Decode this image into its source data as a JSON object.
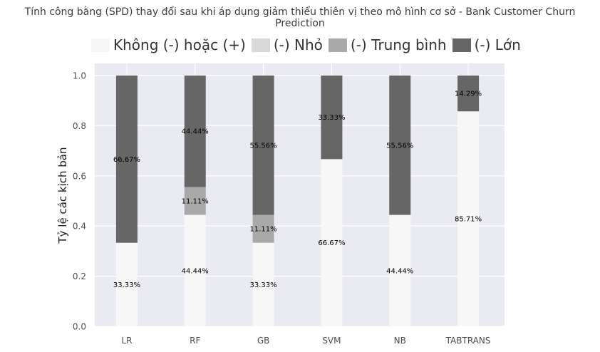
{
  "chart_data": {
    "type": "bar",
    "stacked": true,
    "title": "Tính công bằng (SPD) thay đổi sau khi áp dụng giảm thiểu thiên vị theo mô hình cơ sở - Bank Customer Churn Prediction",
    "ylabel": "Tỷ lệ các kịch bản",
    "xlabel": "",
    "ylim": [
      0,
      1.0
    ],
    "yticks": [
      "0.0",
      "0.2",
      "0.4",
      "0.6",
      "0.8",
      "1.0"
    ],
    "grid": true,
    "legend_position": "top",
    "categories": [
      "LR",
      "RF",
      "GB",
      "SVM",
      "NB",
      "TABTRANS"
    ],
    "series": [
      {
        "name": "Không (-) hoặc (+)",
        "color": "#f7f7f7",
        "values": [
          0.3333,
          0.4444,
          0.3333,
          0.6667,
          0.4444,
          0.8571
        ],
        "labels": [
          "33.33%",
          "44.44%",
          "33.33%",
          "66.67%",
          "44.44%",
          "85.71%"
        ]
      },
      {
        "name": "(-) Nhỏ",
        "color": "#d9d9d9",
        "values": [
          0,
          0,
          0,
          0,
          0,
          0
        ],
        "labels": [
          "",
          "",
          "",
          "",
          "",
          ""
        ]
      },
      {
        "name": "(-) Trung bình",
        "color": "#a9a9a9",
        "values": [
          0,
          0.1111,
          0.1111,
          0,
          0,
          0
        ],
        "labels": [
          "",
          "11.11%",
          "11.11%",
          "",
          "",
          ""
        ]
      },
      {
        "name": "(-) Lớn",
        "color": "#666666",
        "values": [
          0.6667,
          0.4444,
          0.5556,
          0.3333,
          0.5556,
          0.1429
        ],
        "labels": [
          "66.67%",
          "44.44%",
          "55.56%",
          "33.33%",
          "55.56%",
          "14.29%"
        ]
      }
    ],
    "colors": {
      "plot_bg": "#eaeaf2",
      "grid": "#ffffff",
      "text": "#4d4d4d",
      "label": "#000000"
    }
  }
}
